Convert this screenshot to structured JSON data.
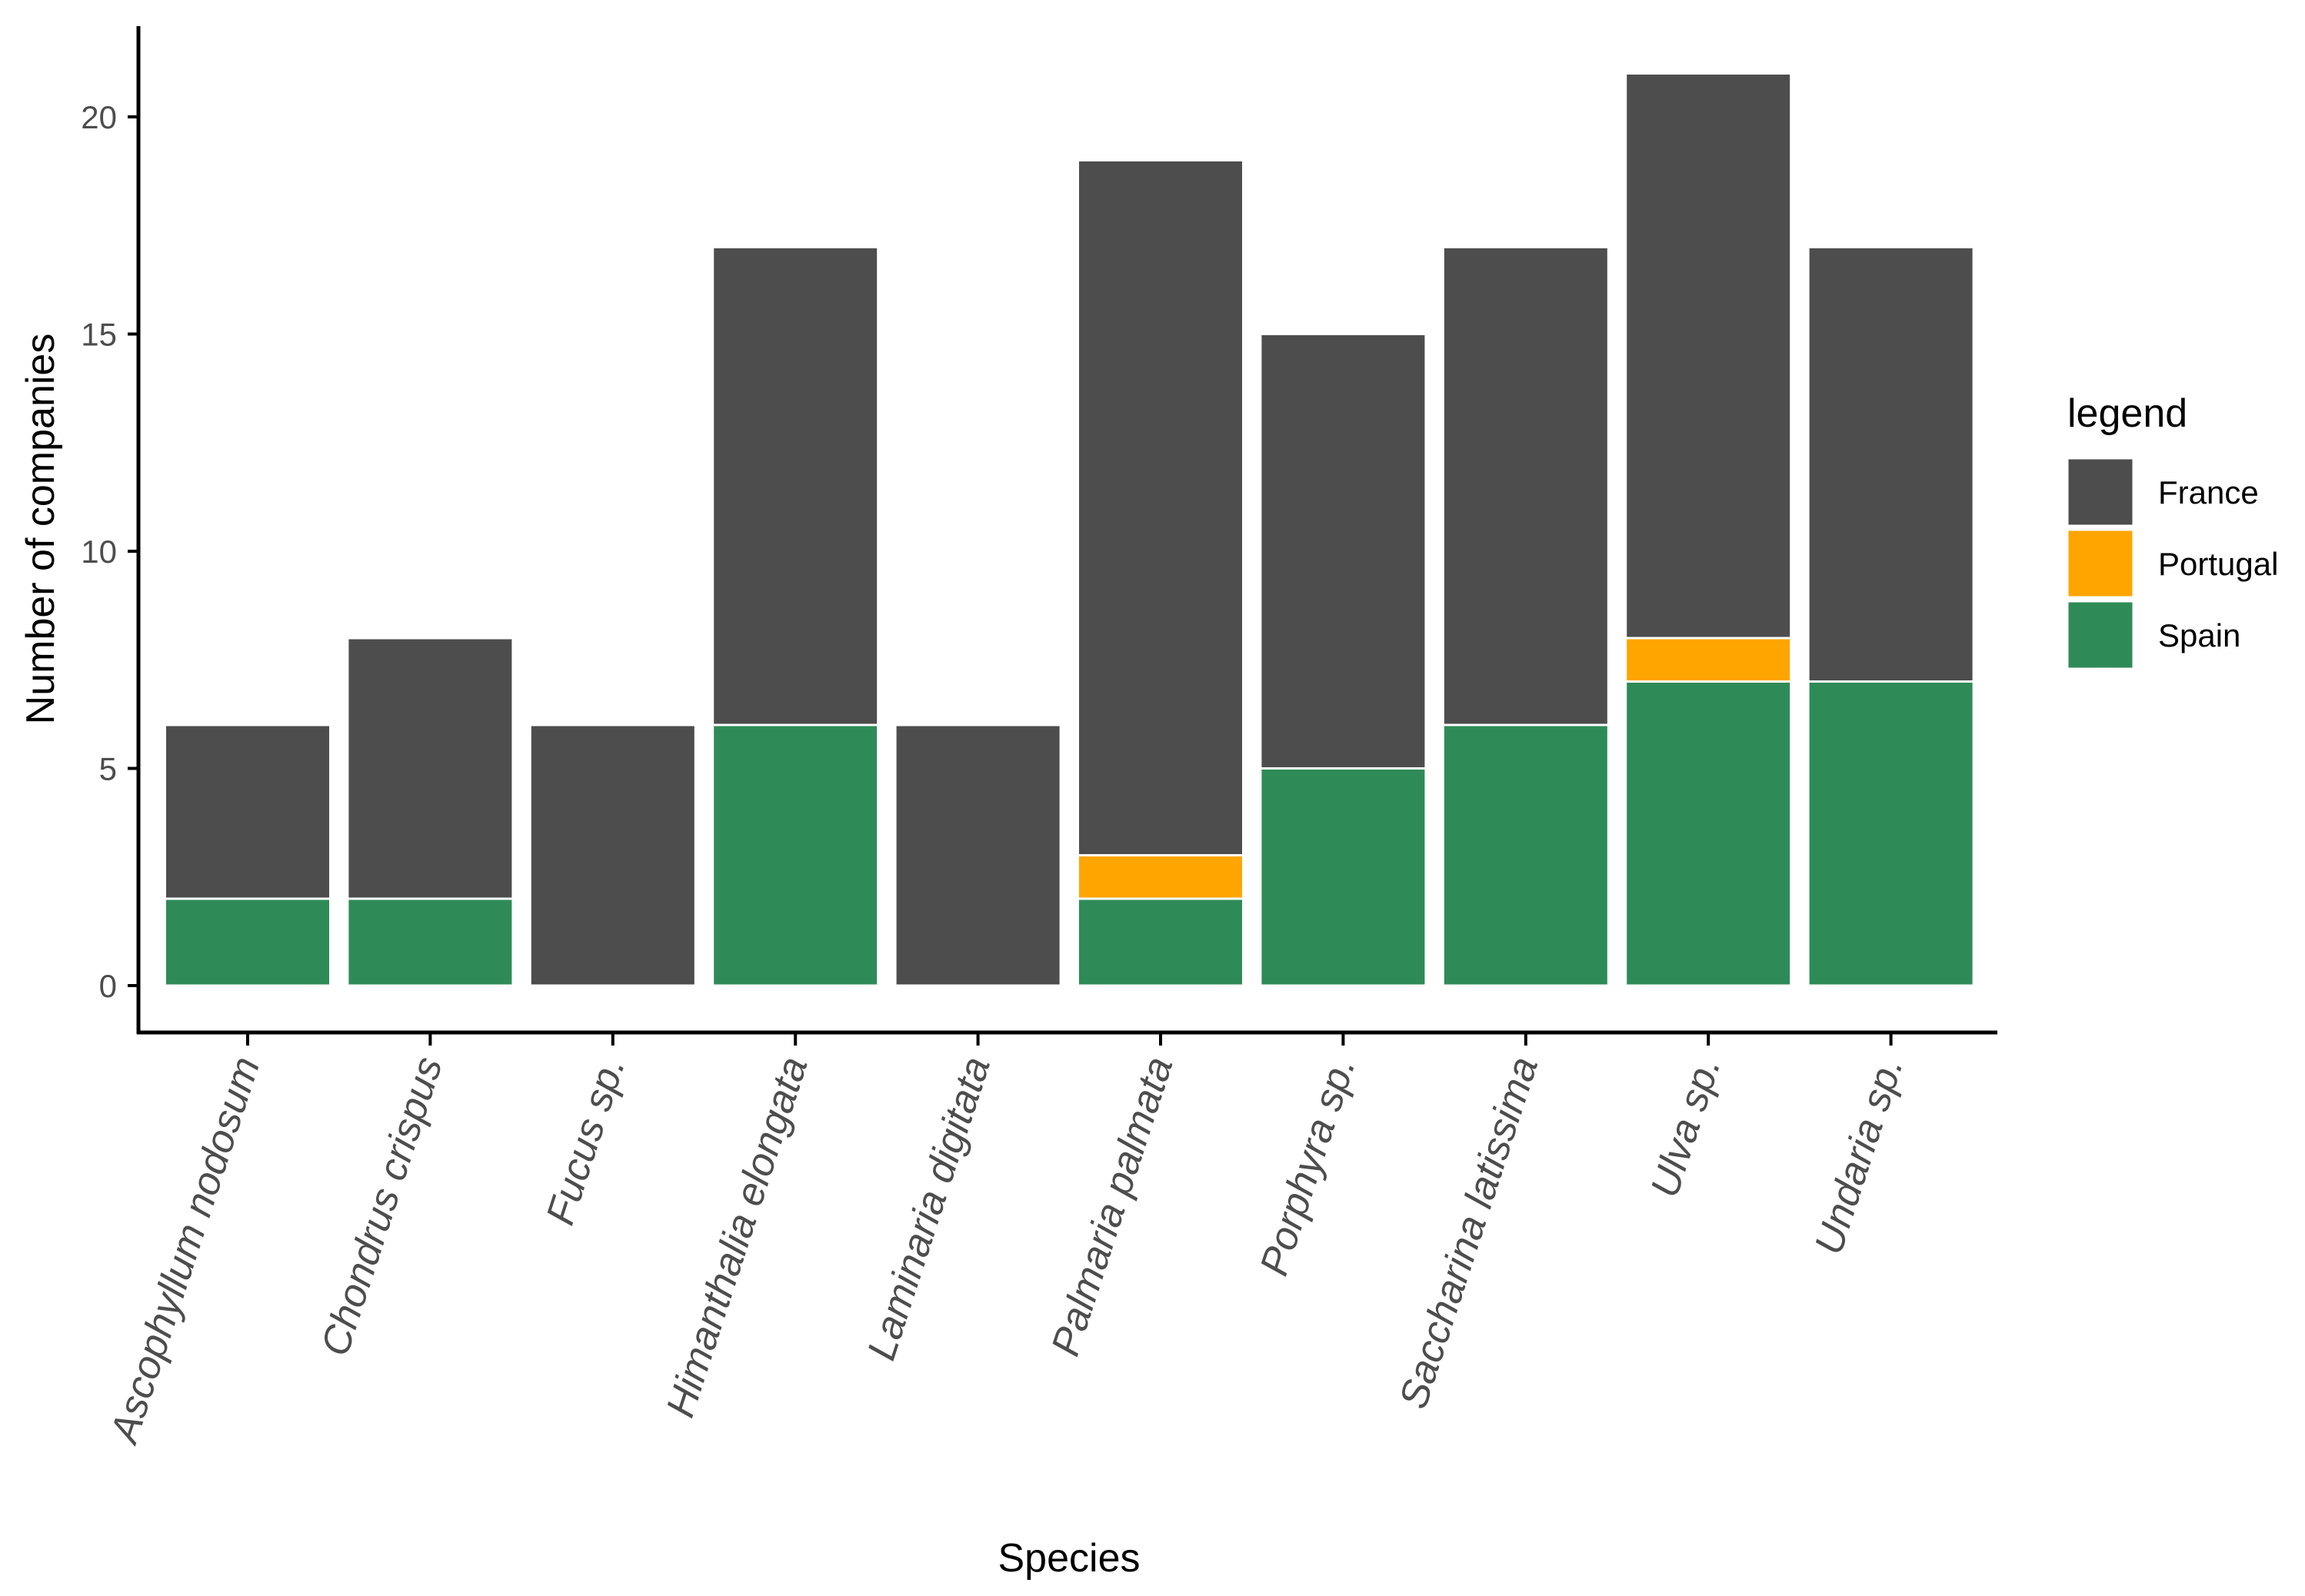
{
  "chart_data": {
    "type": "bar",
    "stacked": true,
    "title": "",
    "xlabel": "Species",
    "ylabel": "Number of companies",
    "ylim": [
      0,
      21.5
    ],
    "yticks": [
      0,
      5,
      10,
      15,
      20
    ],
    "ytick_labels": [
      "0",
      "5",
      "10",
      "15",
      "20"
    ],
    "categories": [
      "Ascophyllum nodosum",
      "Chondrus crispus",
      "Fucus sp.",
      "Himanthalia elongata",
      "Laminaria digitata",
      "Palmaria palmata",
      "Porphyra sp.",
      "Saccharina latissima",
      "Ulva sp.",
      "Undaria sp."
    ],
    "series": [
      {
        "name": "Spain",
        "color": "#2e8b57",
        "values": [
          2,
          2,
          0,
          6,
          0,
          2,
          5,
          6,
          7,
          7
        ]
      },
      {
        "name": "Portugal",
        "color": "#ffa500",
        "values": [
          0,
          0,
          0,
          0,
          0,
          1,
          0,
          0,
          1,
          0
        ]
      },
      {
        "name": "France",
        "color": "#4d4d4d",
        "values": [
          4,
          6,
          6,
          11,
          6,
          16,
          10,
          11,
          13,
          10
        ]
      }
    ],
    "legend": {
      "title": "legend",
      "position": "right",
      "entries": [
        "France",
        "Portugal",
        "Spain"
      ]
    },
    "grid": false
  }
}
